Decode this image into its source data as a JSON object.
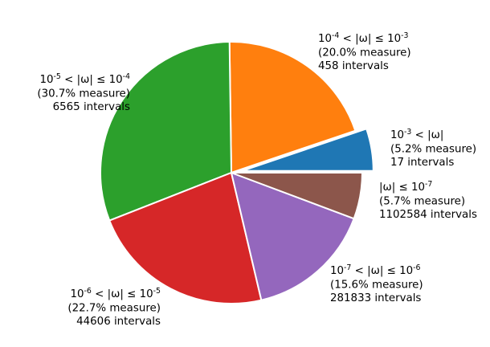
{
  "chart_data": {
    "type": "pie",
    "start_angle_deg": 0,
    "direction": "counterclockwise",
    "slices": [
      {
        "label": "10^{-3} < |ω|",
        "measure_pct": 5.2,
        "measure_text": "(5.2% measure)",
        "intervals": 17,
        "intervals_text": "17 intervals",
        "color": "#1f77b4",
        "exploded": true
      },
      {
        "label": "10^{-4} < |ω| ≤ 10^{-3}",
        "measure_pct": 20.0,
        "measure_text": "(20.0% measure)",
        "intervals": 458,
        "intervals_text": "458 intervals",
        "color": "#ff7f0e",
        "exploded": false
      },
      {
        "label": "10^{-5} < |ω| ≤ 10^{-4}",
        "measure_pct": 30.7,
        "measure_text": "(30.7% measure)",
        "intervals": 6565,
        "intervals_text": "6565 intervals",
        "color": "#2ca02c",
        "exploded": false
      },
      {
        "label": "10^{-6} < |ω| ≤ 10^{-5}",
        "measure_pct": 22.7,
        "measure_text": "(22.7% measure)",
        "intervals": 44606,
        "intervals_text": "44606 intervals",
        "color": "#d62728",
        "exploded": false
      },
      {
        "label": "10^{-7} < |ω| ≤ 10^{-6}",
        "measure_pct": 15.6,
        "measure_text": "(15.6% measure)",
        "intervals": 281833,
        "intervals_text": "281833 intervals",
        "color": "#9467bd",
        "exploded": false
      },
      {
        "label": "|ω| ≤ 10^{-7}",
        "measure_pct": 5.7,
        "measure_text": "(5.7% measure)",
        "intervals": 1102584,
        "intervals_text": "1102584 intervals",
        "color": "#8c564b",
        "exploded": false
      }
    ]
  }
}
